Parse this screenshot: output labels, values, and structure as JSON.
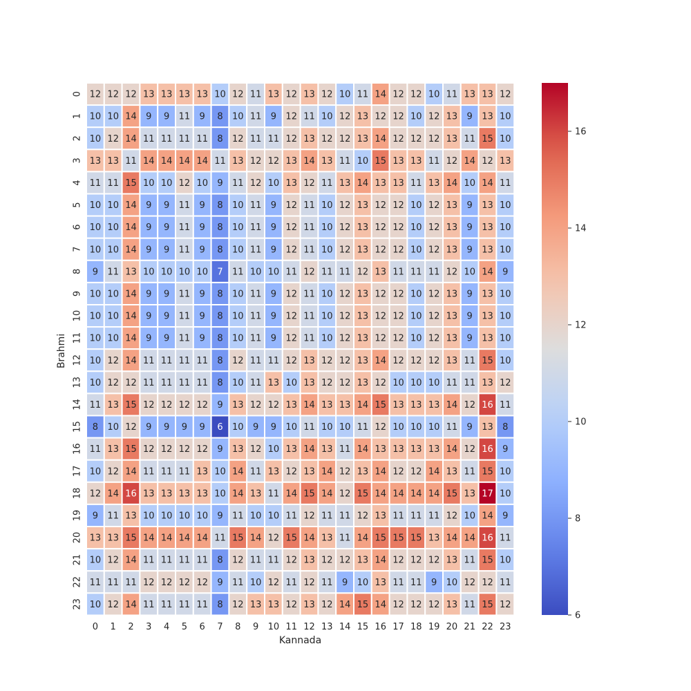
{
  "chart_data": {
    "type": "heatmap",
    "title": "",
    "xlabel": "Kannada",
    "ylabel": "Brahmi",
    "x_categories": [
      "0",
      "1",
      "2",
      "3",
      "4",
      "5",
      "6",
      "7",
      "8",
      "9",
      "10",
      "11",
      "12",
      "13",
      "14",
      "15",
      "16",
      "17",
      "18",
      "19",
      "20",
      "21",
      "22",
      "23"
    ],
    "y_categories": [
      "0",
      "1",
      "2",
      "3",
      "4",
      "5",
      "6",
      "7",
      "8",
      "9",
      "10",
      "11",
      "12",
      "13",
      "14",
      "15",
      "16",
      "17",
      "18",
      "19",
      "20",
      "21",
      "22",
      "23"
    ],
    "values": [
      [
        12,
        12,
        12,
        13,
        13,
        13,
        13,
        10,
        12,
        11,
        13,
        12,
        13,
        12,
        10,
        11,
        14,
        12,
        12,
        10,
        11,
        13,
        13,
        12
      ],
      [
        10,
        10,
        14,
        9,
        9,
        11,
        9,
        8,
        10,
        11,
        9,
        12,
        11,
        10,
        12,
        13,
        12,
        12,
        10,
        12,
        13,
        9,
        13,
        10
      ],
      [
        10,
        12,
        14,
        11,
        11,
        11,
        11,
        8,
        12,
        11,
        11,
        12,
        13,
        12,
        12,
        13,
        14,
        12,
        12,
        12,
        13,
        11,
        15,
        10
      ],
      [
        13,
        13,
        11,
        14,
        14,
        14,
        14,
        11,
        13,
        12,
        12,
        13,
        14,
        13,
        11,
        10,
        15,
        13,
        13,
        11,
        12,
        14,
        12,
        13
      ],
      [
        11,
        11,
        15,
        10,
        10,
        12,
        10,
        9,
        11,
        12,
        10,
        13,
        12,
        11,
        13,
        14,
        13,
        13,
        11,
        13,
        14,
        10,
        14,
        11
      ],
      [
        10,
        10,
        14,
        9,
        9,
        11,
        9,
        8,
        10,
        11,
        9,
        12,
        11,
        10,
        12,
        13,
        12,
        12,
        10,
        12,
        13,
        9,
        13,
        10
      ],
      [
        10,
        10,
        14,
        9,
        9,
        11,
        9,
        8,
        10,
        11,
        9,
        12,
        11,
        10,
        12,
        13,
        12,
        12,
        10,
        12,
        13,
        9,
        13,
        10
      ],
      [
        10,
        10,
        14,
        9,
        9,
        11,
        9,
        8,
        10,
        11,
        9,
        12,
        11,
        10,
        12,
        13,
        12,
        12,
        10,
        12,
        13,
        9,
        13,
        10
      ],
      [
        9,
        11,
        13,
        10,
        10,
        10,
        10,
        7,
        11,
        10,
        10,
        11,
        12,
        11,
        11,
        12,
        13,
        11,
        11,
        11,
        12,
        10,
        14,
        9
      ],
      [
        10,
        10,
        14,
        9,
        9,
        11,
        9,
        8,
        10,
        11,
        9,
        12,
        11,
        10,
        12,
        13,
        12,
        12,
        10,
        12,
        13,
        9,
        13,
        10
      ],
      [
        10,
        10,
        14,
        9,
        9,
        11,
        9,
        8,
        10,
        11,
        9,
        12,
        11,
        10,
        12,
        13,
        12,
        12,
        10,
        12,
        13,
        9,
        13,
        10
      ],
      [
        10,
        10,
        14,
        9,
        9,
        11,
        9,
        8,
        10,
        11,
        9,
        12,
        11,
        10,
        12,
        13,
        12,
        12,
        10,
        12,
        13,
        9,
        13,
        10
      ],
      [
        10,
        12,
        14,
        11,
        11,
        11,
        11,
        8,
        12,
        11,
        11,
        12,
        13,
        12,
        12,
        13,
        14,
        12,
        12,
        12,
        13,
        11,
        15,
        10
      ],
      [
        10,
        12,
        12,
        11,
        11,
        11,
        11,
        8,
        10,
        11,
        13,
        10,
        13,
        12,
        12,
        13,
        12,
        10,
        10,
        10,
        11,
        11,
        13,
        12
      ],
      [
        11,
        13,
        15,
        12,
        12,
        12,
        12,
        9,
        13,
        12,
        12,
        13,
        14,
        13,
        13,
        14,
        15,
        13,
        13,
        13,
        14,
        12,
        16,
        11
      ],
      [
        8,
        10,
        12,
        9,
        9,
        9,
        9,
        6,
        10,
        9,
        9,
        10,
        11,
        10,
        10,
        11,
        12,
        10,
        10,
        10,
        11,
        9,
        13,
        8
      ],
      [
        11,
        13,
        15,
        12,
        12,
        12,
        12,
        9,
        13,
        12,
        10,
        13,
        14,
        13,
        11,
        14,
        13,
        13,
        13,
        13,
        14,
        12,
        16,
        9
      ],
      [
        10,
        12,
        14,
        11,
        11,
        11,
        13,
        10,
        14,
        11,
        13,
        12,
        13,
        14,
        12,
        13,
        14,
        12,
        12,
        14,
        13,
        11,
        15,
        10
      ],
      [
        12,
        14,
        16,
        13,
        13,
        13,
        13,
        10,
        14,
        13,
        11,
        14,
        15,
        14,
        12,
        15,
        14,
        14,
        14,
        14,
        15,
        13,
        17,
        10
      ],
      [
        9,
        11,
        13,
        10,
        10,
        10,
        10,
        9,
        11,
        10,
        10,
        11,
        12,
        11,
        11,
        12,
        13,
        11,
        11,
        11,
        12,
        10,
        14,
        9
      ],
      [
        13,
        13,
        15,
        14,
        14,
        14,
        14,
        11,
        15,
        14,
        12,
        15,
        14,
        13,
        11,
        14,
        15,
        15,
        15,
        13,
        14,
        14,
        16,
        11
      ],
      [
        10,
        12,
        14,
        11,
        11,
        11,
        11,
        8,
        12,
        11,
        11,
        12,
        13,
        12,
        12,
        13,
        14,
        12,
        12,
        12,
        13,
        11,
        15,
        10
      ],
      [
        11,
        11,
        11,
        12,
        12,
        12,
        12,
        9,
        11,
        10,
        12,
        11,
        12,
        11,
        9,
        10,
        13,
        11,
        11,
        9,
        10,
        12,
        12,
        11
      ],
      [
        10,
        12,
        14,
        11,
        11,
        11,
        11,
        8,
        12,
        13,
        13,
        12,
        13,
        12,
        14,
        15,
        14,
        12,
        12,
        12,
        13,
        11,
        15,
        12
      ]
    ],
    "colormap": "coolwarm",
    "vmin": 6,
    "vmax": 17,
    "colorbar_ticks": [
      "6",
      "8",
      "10",
      "12",
      "14",
      "16"
    ],
    "annotations": true
  }
}
